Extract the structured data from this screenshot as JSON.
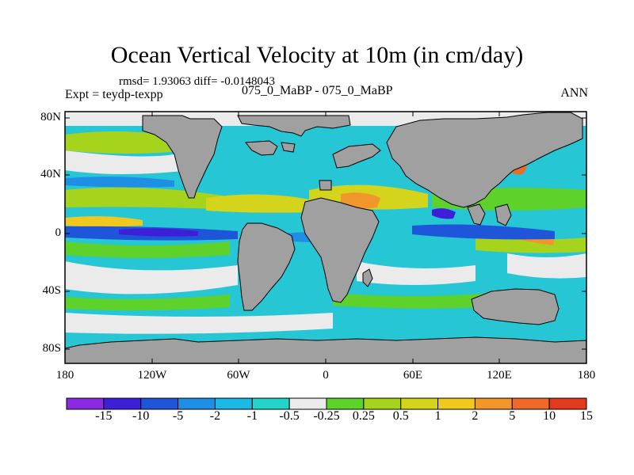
{
  "title": "Ocean Vertical Velocity at 10m (in cm/day)",
  "stats": "rmsd= 1.93063 diff= -0.0148043",
  "expt": "Expt = teydp-texpp",
  "case": "075_0_MaBP - 075_0_MaBP",
  "season": "ANN",
  "lat_labels": [
    "80N",
    "40N",
    "0",
    "40S",
    "80S"
  ],
  "lon_labels": [
    "180",
    "120W",
    "60W",
    "0",
    "60E",
    "120E",
    "180"
  ],
  "colorbar": {
    "colors": [
      "#8a2be2",
      "#3c1fd6",
      "#1f55d9",
      "#1f8fe6",
      "#1cb8e6",
      "#26d3c8",
      "#ebebeb",
      "#5ed12b",
      "#a6d41c",
      "#d4d41c",
      "#f0c81e",
      "#f0962a",
      "#ee6a28",
      "#e23a1c"
    ],
    "labels": [
      "-15",
      "-10",
      "-5",
      "-2",
      "-1",
      "-0.5",
      "-0.25",
      "0.25",
      "0.5",
      "1",
      "2",
      "5",
      "10",
      "15"
    ]
  },
  "colors": {
    "land": "#a0a0a0",
    "background": "#ffffff"
  }
}
